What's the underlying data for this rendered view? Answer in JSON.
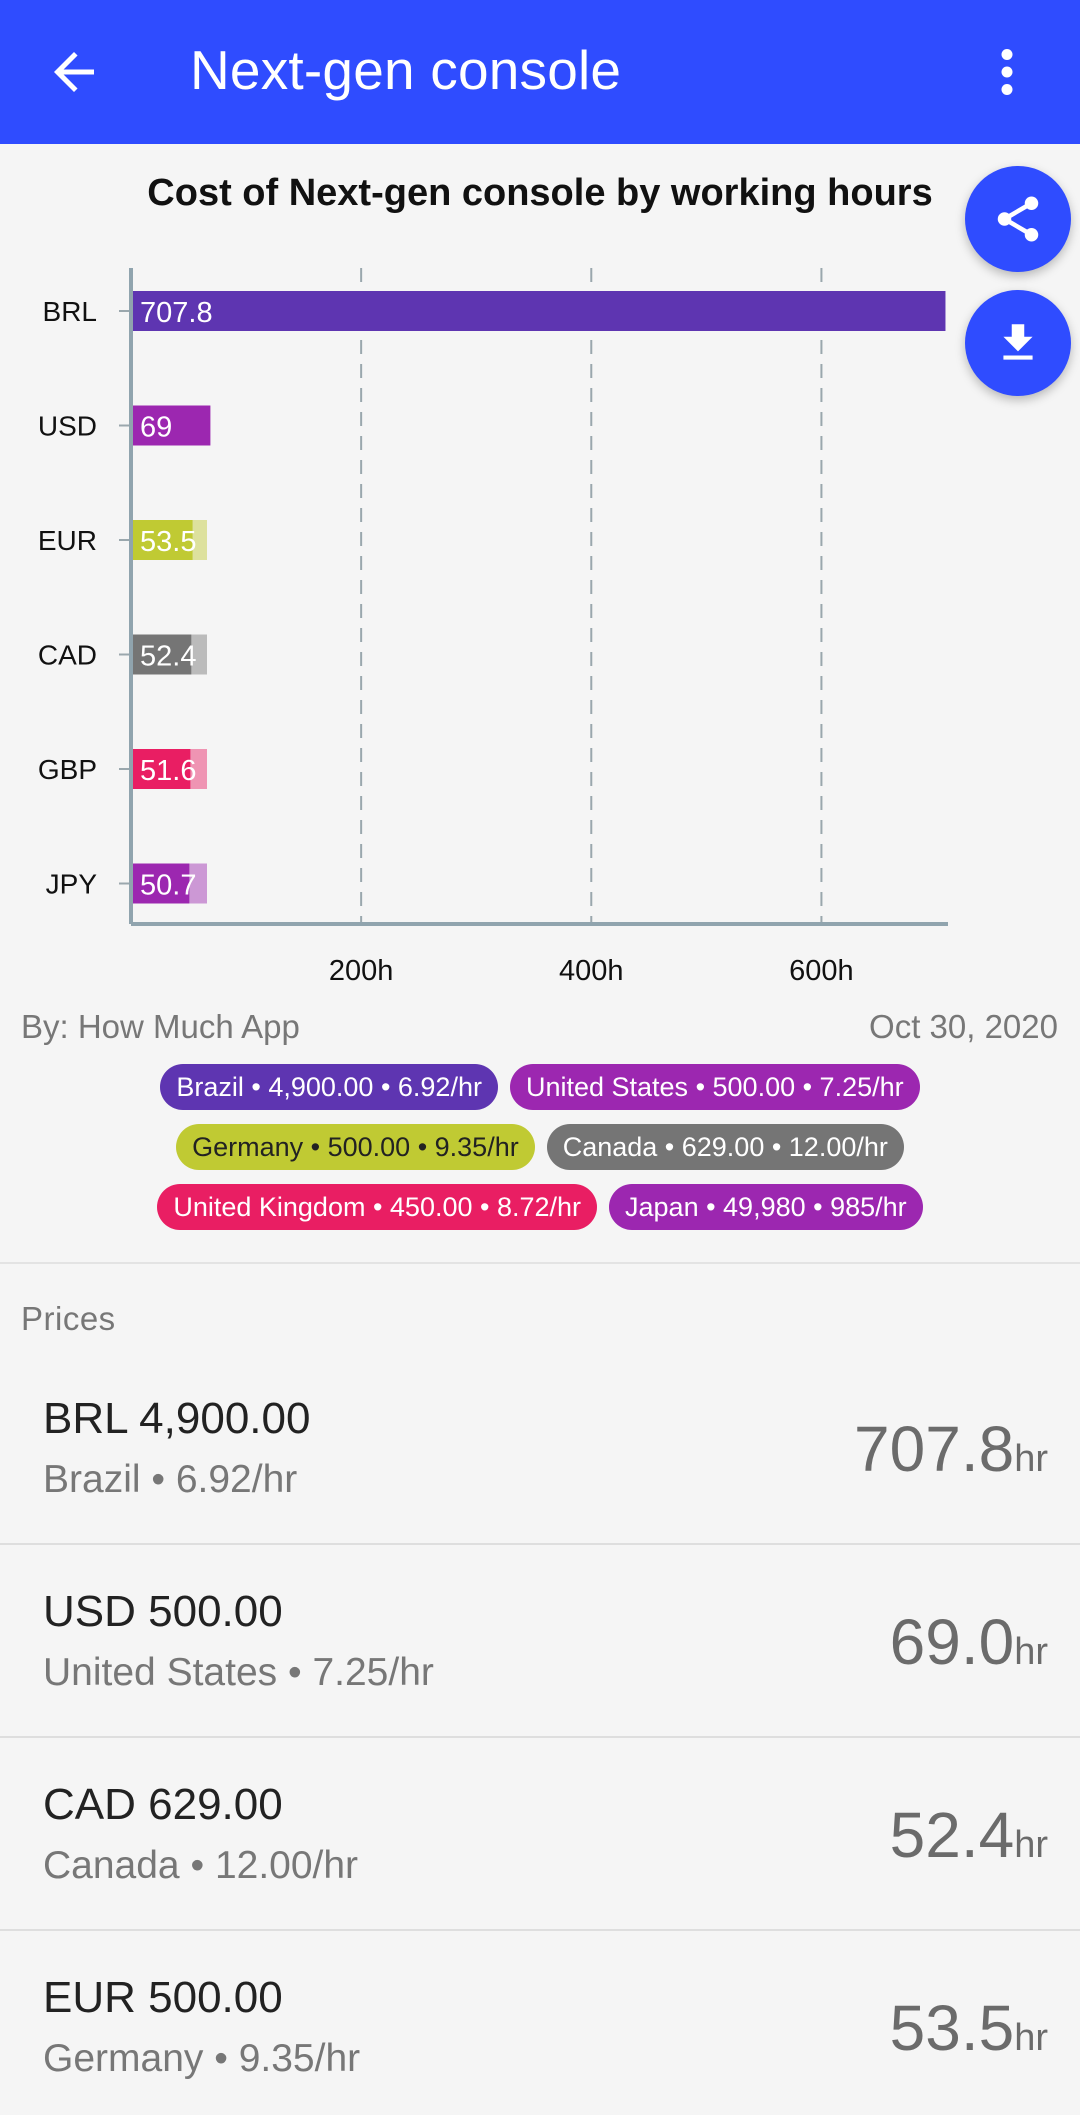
{
  "appbar": {
    "title": "Next-gen console",
    "back_icon": "arrow-left-icon",
    "menu_icon": "more-vert-icon",
    "color": "#2f4cff"
  },
  "fabs": {
    "share_icon": "share-icon",
    "download_icon": "download-icon"
  },
  "chart_data": {
    "type": "bar",
    "orientation": "horizontal",
    "title": "Cost of Next-gen console by working hours",
    "categories": [
      "BRL",
      "USD",
      "EUR",
      "CAD",
      "GBP",
      "JPY"
    ],
    "values": [
      707.8,
      69,
      53.5,
      52.4,
      51.6,
      50.7
    ],
    "value_labels": [
      "707.8",
      "69",
      "53.5",
      "52.4",
      "51.6",
      "50.7"
    ],
    "colors": [
      "#5e35b1",
      "#9c27b0",
      "#c0ca33",
      "#757575",
      "#e91e63",
      "#9c27b0"
    ],
    "xticks": [
      "200h",
      "400h",
      "600h"
    ],
    "xtick_values": [
      200,
      400,
      600
    ],
    "xlim": [
      0,
      710
    ],
    "grid": "vertical dashed",
    "xlabel": "",
    "ylabel": ""
  },
  "byline": {
    "source": "By: How Much App",
    "date": "Oct 30, 2020"
  },
  "legend": [
    {
      "label": "Brazil • 4,900.00 • 6.92/hr",
      "color": "#5e35b1",
      "light": false
    },
    {
      "label": "United States • 500.00 • 7.25/hr",
      "color": "#9c27b0",
      "light": false
    },
    {
      "label": "Germany • 500.00 • 9.35/hr",
      "color": "#c0ca33",
      "light": true
    },
    {
      "label": "Canada • 629.00 • 12.00/hr",
      "color": "#757575",
      "light": false
    },
    {
      "label": "United Kingdom • 450.00 • 8.72/hr",
      "color": "#e91e63",
      "light": false
    },
    {
      "label": "Japan • 49,980 • 985/hr",
      "color": "#9c27b0",
      "light": false
    }
  ],
  "prices": {
    "header": "Prices",
    "items": [
      {
        "amount": "BRL 4,900.00",
        "sub": "Brazil • 6.92/hr",
        "hours": "707.8",
        "unit": "hr"
      },
      {
        "amount": "USD 500.00",
        "sub": "United States • 7.25/hr",
        "hours": "69.0",
        "unit": "hr"
      },
      {
        "amount": "CAD 629.00",
        "sub": "Canada • 12.00/hr",
        "hours": "52.4",
        "unit": "hr"
      },
      {
        "amount": "EUR 500.00",
        "sub": "Germany • 9.35/hr",
        "hours": "53.5",
        "unit": "hr"
      }
    ]
  }
}
